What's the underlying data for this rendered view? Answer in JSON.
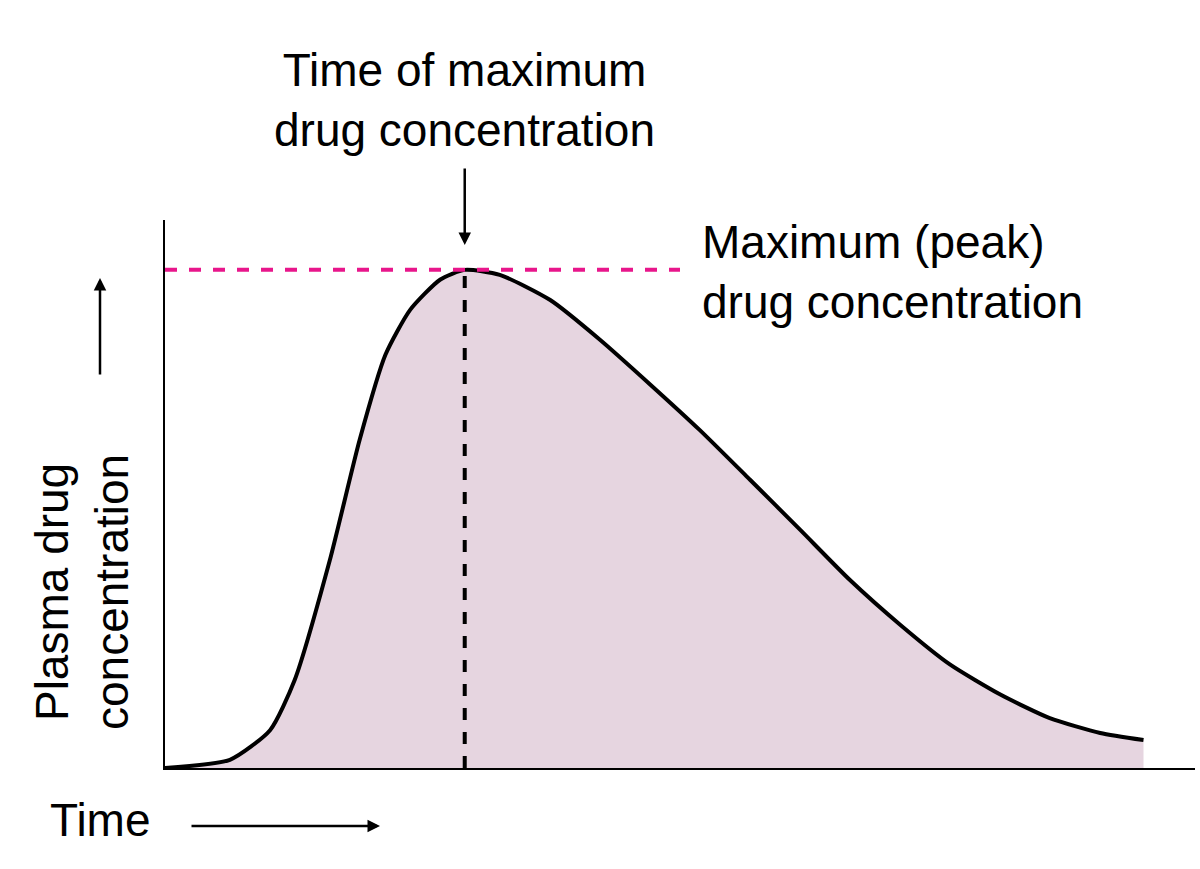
{
  "chart_data": {
    "type": "area",
    "x_label": [
      "Time"
    ],
    "y_label": [
      "Plasma drug",
      "concentration"
    ],
    "x": [
      0,
      0.63,
      1.02,
      1.26,
      1.6,
      1.89,
      2.14,
      2.38,
      2.67,
      2.91,
      3.25,
      3.74,
      4.22,
      4.71,
      5.19,
      5.68,
      6.17,
      6.65,
      7.14,
      7.62,
      8.11,
      8.59,
      9.08,
      9.5
    ],
    "values": [
      0,
      0.15,
      0.69,
      1.61,
      3.79,
      5.99,
      7.54,
      8.36,
      8.91,
      9.09,
      9.0,
      8.54,
      7.82,
      7.0,
      6.17,
      5.26,
      4.34,
      3.43,
      2.61,
      1.89,
      1.34,
      0.91,
      0.64,
      0.51
    ],
    "color": "#e6d5e0",
    "xlim": [
      0,
      10
    ],
    "ylim": [
      0,
      10
    ],
    "tick_labels": false,
    "grid": false,
    "annotations": [
      {
        "text": [
          "Time of maximum",
          "drug concentration"
        ],
        "x": 2.91
      },
      {
        "text": [
          "Maximum (peak)",
          "drug concentration"
        ],
        "y": 9.09
      }
    ]
  }
}
